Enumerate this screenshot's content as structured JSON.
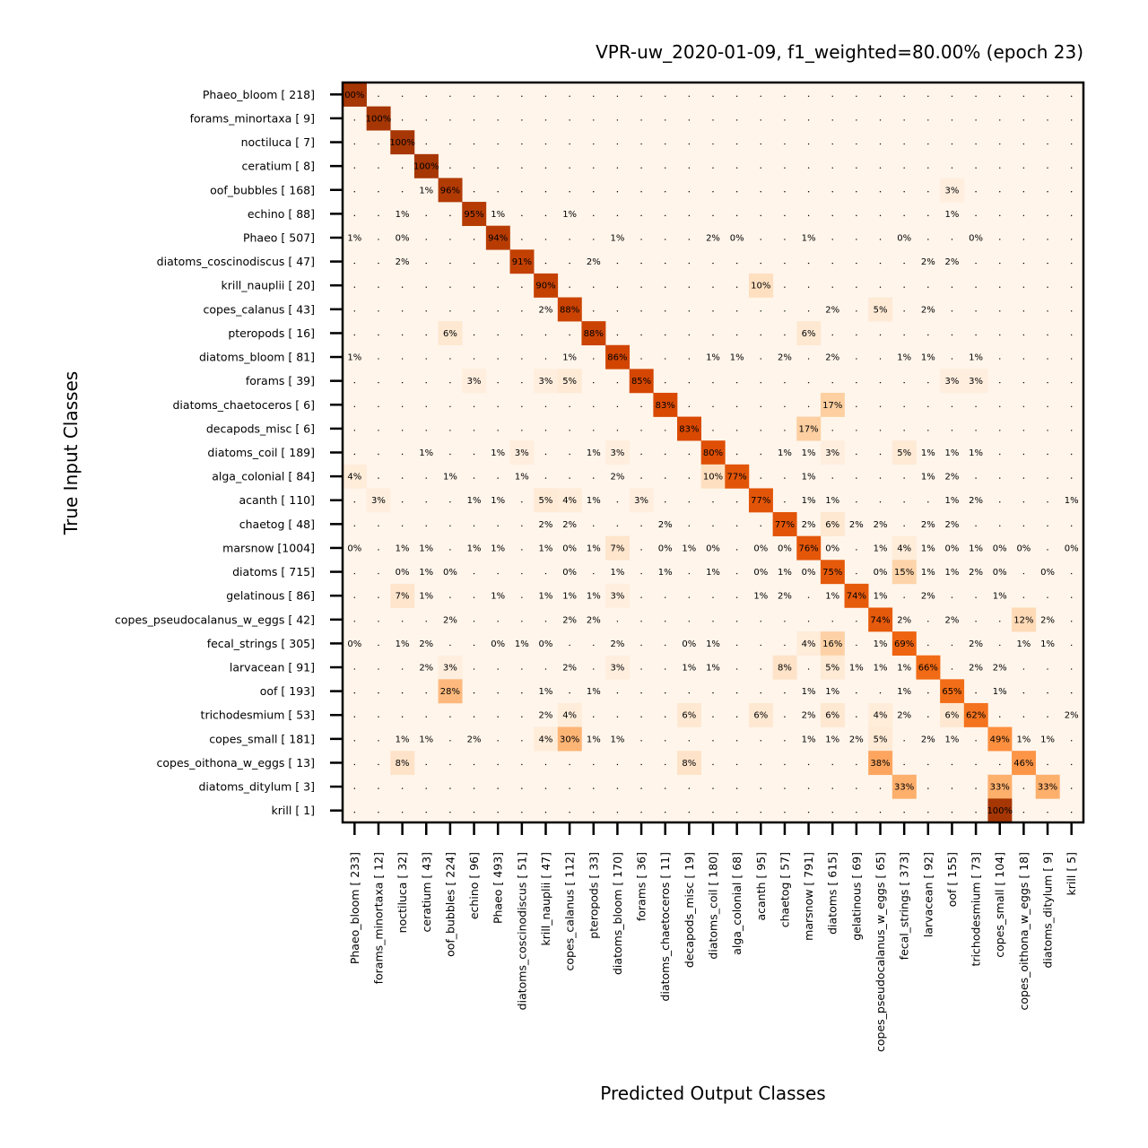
{
  "chart_data": {
    "type": "heatmap",
    "title": "VPR-uw_2020-01-09, f1_weighted=80.00% (epoch 23)",
    "xlabel": "Predicted Output Classes",
    "ylabel": "True Input Classes",
    "colormap": [
      "#fff5eb",
      "#fdd0a2",
      "#fdae6b",
      "#fd8d3c",
      "#f16913",
      "#d94801",
      "#a63603"
    ],
    "row_labels": [
      "Phaeo_bloom [ 218]",
      "forams_minortaxa [   9]",
      "noctiluca [   7]",
      "ceratium [   8]",
      "oof_bubbles [ 168]",
      "echino [  88]",
      "Phaeo [ 507]",
      "diatoms_coscinodiscus [  47]",
      "krill_nauplii [  20]",
      "copes_calanus [  43]",
      "pteropods [  16]",
      "diatoms_bloom [  81]",
      "forams [  39]",
      "diatoms_chaetoceros [   6]",
      "decapods_misc [   6]",
      "diatoms_coil [ 189]",
      "alga_colonial [  84]",
      "acanth [ 110]",
      "chaetog [  48]",
      "marsnow [1004]",
      "diatoms [ 715]",
      "gelatinous [  86]",
      "copes_pseudocalanus_w_eggs [  42]",
      "fecal_strings [ 305]",
      "larvacean [  91]",
      "oof [ 193]",
      "trichodesmium [  53]",
      "copes_small [ 181]",
      "copes_oithona_w_eggs [  13]",
      "diatoms_ditylum [   3]",
      "krill [   1]"
    ],
    "col_labels": [
      "Phaeo_bloom [ 233]",
      "forams_minortaxa [  12]",
      "noctiluca [  32]",
      "ceratium [  43]",
      "oof_bubbles [ 224]",
      "echino [  96]",
      "Phaeo [ 493]",
      "diatoms_coscinodiscus [  51]",
      "krill_nauplii [  47]",
      "copes_calanus [ 112]",
      "pteropods [  33]",
      "diatoms_bloom [ 170]",
      "forams [  36]",
      "diatoms_chaetoceros [  11]",
      "decapods_misc [  19]",
      "diatoms_coil [ 180]",
      "alga_colonial [  68]",
      "acanth [  95]",
      "chaetog [  57]",
      "marsnow [ 791]",
      "diatoms [ 615]",
      "gelatinous [  69]",
      "copes_pseudocalanus_w_eggs [  65]",
      "fecal_strings [ 373]",
      "larvacean [  92]",
      "oof [ 155]",
      "trichodesmium [  73]",
      "copes_small [ 104]",
      "copes_oithona_w_eggs [  18]",
      "diatoms_ditylum [   9]",
      "krill [   5]"
    ],
    "cells": [
      [
        [
          0,
          0,
          "00%"
        ]
      ],
      [
        [
          1,
          1,
          "100%"
        ]
      ],
      [
        [
          2,
          2,
          "100%"
        ]
      ],
      [
        [
          3,
          3,
          "100%"
        ]
      ],
      [
        [
          3,
          3,
          "1%"
        ],
        [
          4,
          4,
          "96%"
        ],
        [
          25,
          25,
          "3%"
        ]
      ],
      [
        [
          2,
          2,
          "1%"
        ],
        [
          5,
          5,
          "95%"
        ],
        [
          6,
          6,
          "1%"
        ],
        [
          9,
          9,
          "1%"
        ],
        [
          25,
          25,
          "1%"
        ]
      ],
      [
        [
          0,
          0,
          "1%"
        ],
        [
          2,
          2,
          "0%"
        ],
        [
          6,
          6,
          "94%"
        ],
        [
          11,
          11,
          "1%"
        ],
        [
          15,
          15,
          "2%"
        ],
        [
          16,
          16,
          "0%"
        ],
        [
          19,
          19,
          "1%"
        ],
        [
          23,
          23,
          "0%"
        ],
        [
          26,
          26,
          "0%"
        ]
      ],
      [
        [
          2,
          2,
          "2%"
        ],
        [
          7,
          7,
          "91%"
        ],
        [
          10,
          10,
          "2%"
        ],
        [
          24,
          24,
          "2%"
        ],
        [
          25,
          25,
          "2%"
        ]
      ],
      [
        [
          8,
          8,
          "90%"
        ],
        [
          17,
          17,
          "10%"
        ]
      ],
      [
        [
          8,
          8,
          "2%"
        ],
        [
          9,
          9,
          "88%"
        ],
        [
          20,
          20,
          "2%"
        ],
        [
          22,
          22,
          "5%"
        ],
        [
          24,
          24,
          "2%"
        ]
      ],
      [
        [
          4,
          4,
          "6%"
        ],
        [
          10,
          10,
          "88%"
        ],
        [
          19,
          19,
          "6%"
        ]
      ],
      [
        [
          0,
          0,
          "1%"
        ],
        [
          9,
          9,
          "1%"
        ],
        [
          11,
          11,
          "86%"
        ],
        [
          15,
          15,
          "1%"
        ],
        [
          16,
          16,
          "1%"
        ],
        [
          18,
          18,
          "2%"
        ],
        [
          20,
          20,
          "2%"
        ],
        [
          23,
          23,
          "1%"
        ],
        [
          24,
          24,
          "1%"
        ],
        [
          26,
          26,
          "1%"
        ]
      ],
      [
        [
          5,
          5,
          "3%"
        ],
        [
          8,
          8,
          "3%"
        ],
        [
          9,
          9,
          "5%"
        ],
        [
          12,
          12,
          "85%"
        ],
        [
          25,
          25,
          "3%"
        ],
        [
          26,
          26,
          "3%"
        ]
      ],
      [
        [
          13,
          13,
          "83%"
        ],
        [
          20,
          20,
          "17%"
        ]
      ],
      [
        [
          14,
          14,
          "83%"
        ],
        [
          19,
          19,
          "17%"
        ]
      ],
      [
        [
          3,
          3,
          "1%"
        ],
        [
          6,
          6,
          "1%"
        ],
        [
          7,
          7,
          "3%"
        ],
        [
          10,
          10,
          "1%"
        ],
        [
          11,
          11,
          "3%"
        ],
        [
          15,
          15,
          "80%"
        ],
        [
          18,
          18,
          "1%"
        ],
        [
          19,
          19,
          "1%"
        ],
        [
          20,
          20,
          "3%"
        ],
        [
          23,
          23,
          "5%"
        ],
        [
          24,
          24,
          "1%"
        ],
        [
          25,
          25,
          "1%"
        ],
        [
          26,
          26,
          "1%"
        ]
      ],
      [
        [
          0,
          0,
          "4%"
        ],
        [
          4,
          4,
          "1%"
        ],
        [
          7,
          7,
          "1%"
        ],
        [
          11,
          11,
          "2%"
        ],
        [
          15,
          15,
          "10%"
        ],
        [
          16,
          16,
          "77%"
        ],
        [
          19,
          19,
          "1%"
        ],
        [
          24,
          24,
          "1%"
        ],
        [
          25,
          25,
          "2%"
        ]
      ],
      [
        [
          1,
          1,
          "3%"
        ],
        [
          5,
          5,
          "1%"
        ],
        [
          6,
          6,
          "1%"
        ],
        [
          8,
          8,
          "5%"
        ],
        [
          9,
          9,
          "4%"
        ],
        [
          10,
          10,
          "1%"
        ],
        [
          12,
          12,
          "3%"
        ],
        [
          17,
          17,
          "77%"
        ],
        [
          19,
          19,
          "1%"
        ],
        [
          20,
          20,
          "1%"
        ],
        [
          25,
          25,
          "1%"
        ],
        [
          26,
          26,
          "2%"
        ],
        [
          30,
          30,
          "1%"
        ]
      ],
      [
        [
          8,
          8,
          "2%"
        ],
        [
          9,
          9,
          "2%"
        ],
        [
          13,
          13,
          "2%"
        ],
        [
          18,
          18,
          "77%"
        ],
        [
          19,
          19,
          "2%"
        ],
        [
          20,
          20,
          "6%"
        ],
        [
          21,
          21,
          "2%"
        ],
        [
          22,
          22,
          "2%"
        ],
        [
          24,
          24,
          "2%"
        ],
        [
          25,
          25,
          "2%"
        ]
      ],
      [
        [
          0,
          0,
          "0%"
        ],
        [
          2,
          2,
          "1%"
        ],
        [
          3,
          3,
          "1%"
        ],
        [
          5,
          5,
          "1%"
        ],
        [
          6,
          6,
          "1%"
        ],
        [
          8,
          8,
          "1%"
        ],
        [
          9,
          9,
          "0%"
        ],
        [
          10,
          10,
          "1%"
        ],
        [
          11,
          11,
          "7%"
        ],
        [
          13,
          13,
          "0%"
        ],
        [
          14,
          14,
          "1%"
        ],
        [
          15,
          15,
          "0%"
        ],
        [
          17,
          17,
          "0%"
        ],
        [
          18,
          18,
          "0%"
        ],
        [
          19,
          19,
          "76%"
        ],
        [
          20,
          20,
          "0%"
        ],
        [
          22,
          22,
          "1%"
        ],
        [
          23,
          23,
          "4%"
        ],
        [
          24,
          24,
          "1%"
        ],
        [
          25,
          25,
          "0%"
        ],
        [
          26,
          26,
          "1%"
        ],
        [
          27,
          27,
          "0%"
        ],
        [
          28,
          28,
          "0%"
        ],
        [
          30,
          30,
          "0%"
        ]
      ],
      [
        [
          2,
          2,
          "0%"
        ],
        [
          3,
          3,
          "1%"
        ],
        [
          4,
          4,
          "0%"
        ],
        [
          9,
          9,
          "0%"
        ],
        [
          11,
          11,
          "1%"
        ],
        [
          13,
          13,
          "1%"
        ],
        [
          15,
          15,
          "1%"
        ],
        [
          17,
          17,
          "0%"
        ],
        [
          18,
          18,
          "1%"
        ],
        [
          19,
          19,
          "0%"
        ],
        [
          20,
          20,
          "75%"
        ],
        [
          22,
          22,
          "0%"
        ],
        [
          23,
          23,
          "15%"
        ],
        [
          24,
          24,
          "1%"
        ],
        [
          25,
          25,
          "1%"
        ],
        [
          26,
          26,
          "2%"
        ],
        [
          27,
          27,
          "0%"
        ],
        [
          29,
          29,
          "0%"
        ]
      ],
      [
        [
          2,
          2,
          "7%"
        ],
        [
          3,
          3,
          "1%"
        ],
        [
          6,
          6,
          "1%"
        ],
        [
          8,
          8,
          "1%"
        ],
        [
          9,
          9,
          "1%"
        ],
        [
          10,
          10,
          "1%"
        ],
        [
          11,
          11,
          "3%"
        ],
        [
          17,
          17,
          "1%"
        ],
        [
          18,
          18,
          "2%"
        ],
        [
          20,
          20,
          "1%"
        ],
        [
          21,
          21,
          "74%"
        ],
        [
          22,
          22,
          "1%"
        ],
        [
          24,
          24,
          "2%"
        ],
        [
          27,
          27,
          "1%"
        ]
      ],
      [
        [
          4,
          4,
          "2%"
        ],
        [
          9,
          9,
          "2%"
        ],
        [
          10,
          10,
          "2%"
        ],
        [
          22,
          22,
          "74%"
        ],
        [
          23,
          23,
          "2%"
        ],
        [
          25,
          25,
          "2%"
        ],
        [
          28,
          28,
          "12%"
        ],
        [
          29,
          29,
          "2%"
        ]
      ],
      [
        [
          0,
          0,
          "0%"
        ],
        [
          2,
          2,
          "1%"
        ],
        [
          3,
          3,
          "2%"
        ],
        [
          6,
          6,
          "0%"
        ],
        [
          7,
          7,
          "1%"
        ],
        [
          8,
          8,
          "0%"
        ],
        [
          11,
          11,
          "2%"
        ],
        [
          14,
          14,
          "0%"
        ],
        [
          15,
          15,
          "1%"
        ],
        [
          19,
          19,
          "4%"
        ],
        [
          20,
          20,
          "16%"
        ],
        [
          22,
          22,
          "1%"
        ],
        [
          23,
          23,
          "69%"
        ],
        [
          26,
          26,
          "2%"
        ],
        [
          28,
          28,
          "1%"
        ],
        [
          29,
          29,
          "1%"
        ]
      ],
      [
        [
          3,
          3,
          "2%"
        ],
        [
          4,
          4,
          "3%"
        ],
        [
          9,
          9,
          "2%"
        ],
        [
          11,
          11,
          "3%"
        ],
        [
          14,
          14,
          "1%"
        ],
        [
          15,
          15,
          "1%"
        ],
        [
          18,
          18,
          "8%"
        ],
        [
          20,
          20,
          "5%"
        ],
        [
          21,
          21,
          "1%"
        ],
        [
          22,
          22,
          "1%"
        ],
        [
          23,
          23,
          "1%"
        ],
        [
          24,
          24,
          "66%"
        ],
        [
          26,
          26,
          "2%"
        ],
        [
          27,
          27,
          "2%"
        ]
      ],
      [
        [
          4,
          4,
          "28%"
        ],
        [
          8,
          8,
          "1%"
        ],
        [
          10,
          10,
          "1%"
        ],
        [
          19,
          19,
          "1%"
        ],
        [
          20,
          20,
          "1%"
        ],
        [
          23,
          23,
          "1%"
        ],
        [
          25,
          25,
          "65%"
        ],
        [
          27,
          27,
          "1%"
        ]
      ],
      [
        [
          8,
          8,
          "2%"
        ],
        [
          9,
          9,
          "4%"
        ],
        [
          14,
          14,
          "6%"
        ],
        [
          17,
          17,
          "6%"
        ],
        [
          19,
          19,
          "2%"
        ],
        [
          20,
          20,
          "6%"
        ],
        [
          22,
          22,
          "4%"
        ],
        [
          23,
          23,
          "2%"
        ],
        [
          25,
          25,
          "6%"
        ],
        [
          26,
          26,
          "62%"
        ],
        [
          30,
          30,
          "2%"
        ]
      ],
      [
        [
          2,
          2,
          "1%"
        ],
        [
          3,
          3,
          "1%"
        ],
        [
          5,
          5,
          "2%"
        ],
        [
          8,
          8,
          "4%"
        ],
        [
          9,
          9,
          "30%"
        ],
        [
          10,
          10,
          "1%"
        ],
        [
          11,
          11,
          "1%"
        ],
        [
          19,
          19,
          "1%"
        ],
        [
          20,
          20,
          "1%"
        ],
        [
          21,
          21,
          "2%"
        ],
        [
          22,
          22,
          "5%"
        ],
        [
          24,
          24,
          "2%"
        ],
        [
          25,
          25,
          "1%"
        ],
        [
          27,
          27,
          "49%"
        ],
        [
          28,
          28,
          "1%"
        ],
        [
          29,
          29,
          "1%"
        ]
      ],
      [
        [
          2,
          2,
          "8%"
        ],
        [
          14,
          14,
          "8%"
        ],
        [
          22,
          22,
          "38%"
        ],
        [
          28,
          28,
          "46%"
        ]
      ],
      [
        [
          23,
          23,
          "33%"
        ],
        [
          27,
          27,
          "33%"
        ],
        [
          29,
          29,
          "33%"
        ]
      ],
      [
        [
          27,
          27,
          "100%"
        ]
      ]
    ]
  }
}
